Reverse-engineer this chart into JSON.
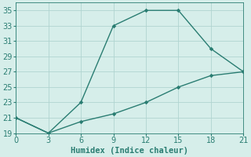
{
  "line1_x": [
    0,
    3,
    6,
    9,
    12,
    15,
    18,
    21
  ],
  "line1_y": [
    21,
    19,
    23,
    33,
    35,
    35,
    30,
    27
  ],
  "line2_x": [
    0,
    3,
    6,
    9,
    12,
    15,
    18,
    21
  ],
  "line2_y": [
    21,
    19,
    20.5,
    21.5,
    23,
    25,
    26.5,
    27
  ],
  "line_color": "#2a7d72",
  "bg_color": "#d6eeea",
  "grid_color": "#b0d4d0",
  "xlabel": "Humidex (Indice chaleur)",
  "xlim": [
    0,
    21
  ],
  "ylim": [
    19,
    36
  ],
  "xticks": [
    0,
    3,
    6,
    9,
    12,
    15,
    18,
    21
  ],
  "yticks": [
    19,
    21,
    23,
    25,
    27,
    29,
    31,
    33,
    35
  ],
  "xlabel_fontsize": 7.5,
  "tick_fontsize": 7
}
